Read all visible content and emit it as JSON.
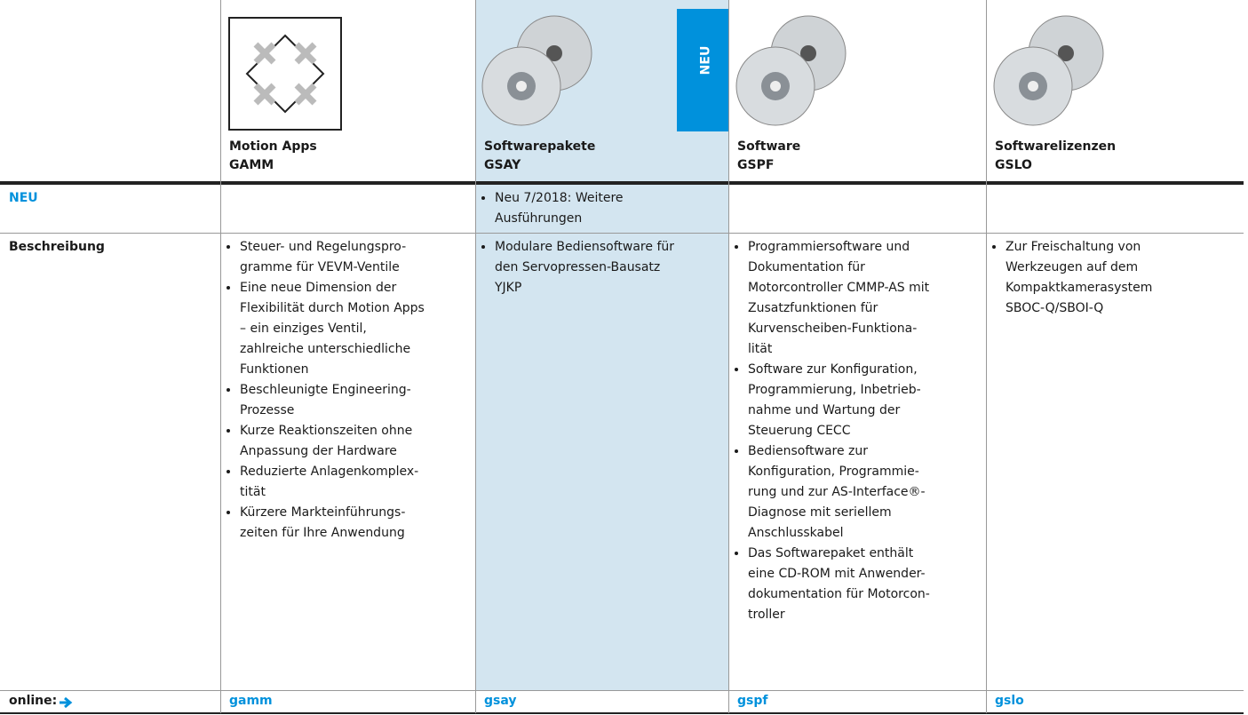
{
  "badge": "NEU",
  "row_labels": {
    "neu": "NEU",
    "description": "Beschreibung",
    "online": "online:"
  },
  "columns": [
    {
      "name": "Motion Apps",
      "code": "GAMM",
      "description": [
        [
          "Steuer- und Regelungspro-",
          "gramme für VEVM-Ventile"
        ],
        [
          "Eine neue Dimension der",
          "Flexibilität durch Motion Apps",
          "– ein einziges Ventil,",
          "zahlreiche unterschiedliche",
          "Funktionen"
        ],
        [
          "Beschleunigte Engineering-",
          "Prozesse"
        ],
        [
          "Kurze Reaktionszeiten ohne",
          "Anpassung der Hardware"
        ],
        [
          "Reduzierte Anlagenkomplex-",
          "tität"
        ],
        [
          "Kürzere Markteinführungs-",
          "zeiten für Ihre Anwendung"
        ]
      ],
      "link": "gamm"
    },
    {
      "name": "Softwarepakete",
      "code": "GSAY",
      "neu": [
        [
          "Neu 7/2018: Weitere",
          "Ausführungen"
        ]
      ],
      "description": [
        [
          "Modulare Bediensoftware für",
          "den Servopressen-Bausatz",
          "YJKP"
        ]
      ],
      "link": "gsay"
    },
    {
      "name": "Software",
      "code": "GSPF",
      "description": [
        [
          "Programmiersoftware und",
          "Dokumentation für",
          "Motorcontroller CMMP-AS mit",
          "Zusatzfunktionen für",
          "Kurvenscheiben-Funktiona-",
          "lität"
        ],
        [
          "Software zur Konfiguration,",
          "Programmierung, Inbetrieb-",
          "nahme und Wartung der",
          "Steuerung CECC"
        ],
        [
          "Bediensoftware zur",
          "Konfiguration, Programmie-",
          "rung und zur AS-Interface®-",
          "Diagnose mit seriellem",
          "Anschlusskabel"
        ],
        [
          "Das Softwarepaket enthält",
          "eine CD-ROM mit Anwender-",
          "dokumentation für Motorcon-",
          "troller"
        ]
      ],
      "link": "gspf"
    },
    {
      "name": "Softwarelizenzen",
      "code": "GSLO",
      "description": [
        [
          "Zur Freischaltung von",
          "Werkzeugen auf dem",
          "Kompaktkamerasystem",
          "SBOC-Q/SBOI-Q"
        ]
      ],
      "link": "gslo"
    }
  ]
}
